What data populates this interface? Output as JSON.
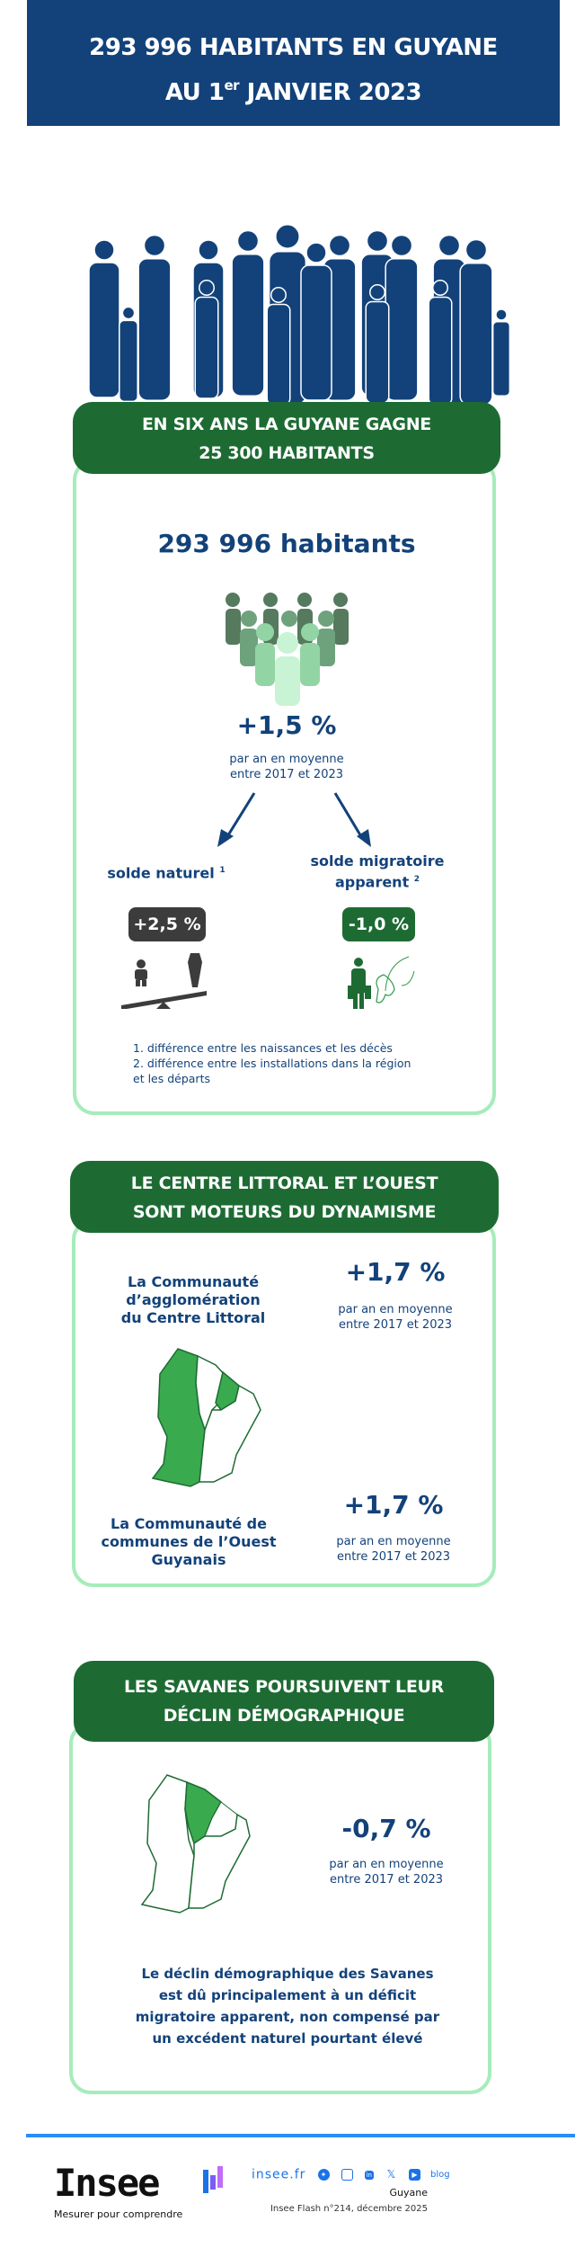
{
  "banner": {
    "line1": "293 996 HABITANTS EN GUYANE",
    "line2_pre": "AU 1",
    "line2_sup": "er",
    "line2_post": " JANVIER 2023",
    "color": "#13427a"
  },
  "section1": {
    "title_line1": "EN SIX ANS LA GUYANE GAGNE",
    "title_line2": "25 300 HABITANTS",
    "population": "293 996 habitants",
    "growth": "+1,5 %",
    "growth_sub1": "par an en moyenne",
    "growth_sub2": "entre 2017 et 2023",
    "natural": {
      "label": "solde naturel",
      "note": "1",
      "value": "+2,5 %",
      "color": "#3c3c3c"
    },
    "migration": {
      "label1": "solde migratoire",
      "label2": "apparent",
      "note": "2",
      "value": "-1,0 %",
      "color": "#1d6b33"
    },
    "footnotes": [
      "1. différence entre les naissances et les décès",
      "2. différence entre les installations dans la région",
      "et les départs"
    ]
  },
  "section2": {
    "title_line1": "LE CENTRE LITTORAL ET L’OUEST",
    "title_line2": "SONT MOTEURS DU DYNAMISME",
    "entries": [
      {
        "name_lines": [
          "La Communauté",
          "d’agglomération",
          "du Centre Littoral"
        ],
        "value": "+1,7 %",
        "sub1": "par an en moyenne",
        "sub2": "entre 2017 et 2023"
      },
      {
        "name_lines": [
          "La Communauté de",
          "communes de l’Ouest",
          "Guyanais"
        ],
        "value": "+1,7 %",
        "sub1": "par an en moyenne",
        "sub2": "entre 2017 et 2023"
      }
    ]
  },
  "section3": {
    "title_line1": "LES SAVANES POURSUIVENT LEUR",
    "title_line2": "DÉCLIN DÉMOGRAPHIQUE",
    "value": "-0,7 %",
    "sub1": "par an en moyenne",
    "sub2": "entre 2017 et 2023",
    "paragraph": [
      "Le déclin démographique des Savanes",
      "est dû principalement à un déficit",
      "migratoire apparent, non compensé par",
      "un excédent naturel pourtant élevé"
    ]
  },
  "footer": {
    "logo": "Insee",
    "tagline": "Mesurer pour comprendre",
    "site": "insee.fr",
    "social_icons": [
      "bluesky-icon",
      "instagram-icon",
      "linkedin-icon",
      "x-icon",
      "youtube-icon"
    ],
    "blog": "blog",
    "region": "Guyane",
    "publication": "Insee Flash n°214, décembre 2025",
    "accent": "#2b8cf5"
  }
}
